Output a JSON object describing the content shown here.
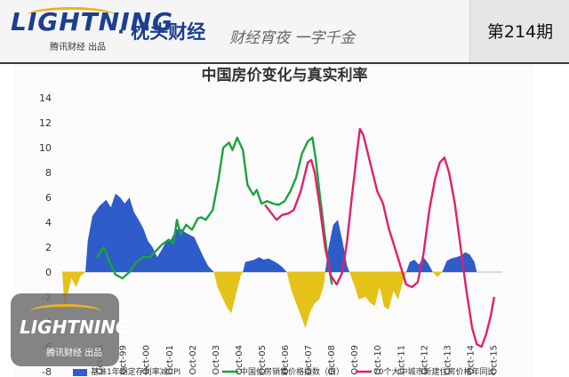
{
  "header": {
    "brand": "LIGHTNING",
    "brand_sub": "腾讯财经 出品",
    "column_name": "· 枕头财经",
    "slogan": "财经宵夜 一字千金",
    "issue": "第214期"
  },
  "watermark": {
    "brand": "LIGHTNING",
    "brand_sub": "腾讯财经 出品"
  },
  "colors": {
    "brand": "#1c3f8f",
    "series1": "#2e5cc8",
    "series1_negative": "#e5c21a",
    "series2": "#1aa33c",
    "series3": "#e0206a"
  },
  "chart_data": {
    "type": "line",
    "title": "中国房价变化与真实利率",
    "xlabel": "",
    "ylabel": "",
    "ylim": [
      -8,
      14
    ],
    "yticks": [
      14,
      12,
      10,
      8,
      6,
      4,
      2,
      0,
      -2,
      -4,
      -6,
      -8
    ],
    "x_range": [
      1997.0,
      2016.0
    ],
    "x_ticks": [
      {
        "label": "Oct-98",
        "x": 1998.75
      },
      {
        "label": "Oct-99",
        "x": 1999.75
      },
      {
        "label": "Oct-00",
        "x": 2000.75
      },
      {
        "label": "Oct-01",
        "x": 2001.75
      },
      {
        "label": "Oct-02",
        "x": 2002.75
      },
      {
        "label": "Oct-03",
        "x": 2003.75
      },
      {
        "label": "Oct-04",
        "x": 2004.75
      },
      {
        "label": "Oct-05",
        "x": 2005.75
      },
      {
        "label": "Oct-06",
        "x": 2006.75
      },
      {
        "label": "Oct-07",
        "x": 2007.75
      },
      {
        "label": "Oct-08",
        "x": 2008.75
      },
      {
        "label": "Oct-09",
        "x": 2009.75
      },
      {
        "label": "Oct-10",
        "x": 2010.75
      },
      {
        "label": "Oct-11",
        "x": 2011.75
      },
      {
        "label": "Oct-12",
        "x": 2012.75
      },
      {
        "label": "Oct-13",
        "x": 2013.75
      },
      {
        "label": "Oct-14",
        "x": 2014.75
      },
      {
        "label": "Oct-15",
        "x": 2015.75
      }
    ],
    "series": [
      {
        "name": "基准1年期定存利率减CPI",
        "style": "area",
        "points": [
          [
            1997.0,
            0.0
          ],
          [
            1997.1,
            -2.8
          ],
          [
            1997.4,
            -0.5
          ],
          [
            1997.6,
            -1.2
          ],
          [
            1997.8,
            -0.3
          ],
          [
            1998.0,
            0.0
          ],
          [
            1998.1,
            2.5
          ],
          [
            1998.3,
            4.5
          ],
          [
            1998.6,
            5.3
          ],
          [
            1998.9,
            5.8
          ],
          [
            1999.1,
            5.2
          ],
          [
            1999.3,
            6.3
          ],
          [
            1999.5,
            6.0
          ],
          [
            1999.7,
            5.5
          ],
          [
            1999.9,
            6.0
          ],
          [
            2000.1,
            4.8
          ],
          [
            2000.3,
            4.2
          ],
          [
            2000.5,
            3.5
          ],
          [
            2000.7,
            2.5
          ],
          [
            2000.9,
            2.0
          ],
          [
            2001.1,
            1.2
          ],
          [
            2001.3,
            1.8
          ],
          [
            2001.5,
            2.5
          ],
          [
            2001.7,
            2.6
          ],
          [
            2001.9,
            3.4
          ],
          [
            2002.1,
            3.5
          ],
          [
            2002.3,
            3.2
          ],
          [
            2002.5,
            3.0
          ],
          [
            2002.7,
            2.8
          ],
          [
            2002.9,
            2.0
          ],
          [
            2003.1,
            1.2
          ],
          [
            2003.3,
            0.5
          ],
          [
            2003.5,
            0.1
          ],
          [
            2003.55,
            0.0
          ],
          [
            2003.7,
            -1.2
          ],
          [
            2003.9,
            -2.0
          ],
          [
            2004.1,
            -2.8
          ],
          [
            2004.3,
            -3.3
          ],
          [
            2004.5,
            -1.8
          ],
          [
            2004.7,
            -0.3
          ],
          [
            2004.8,
            0.0
          ],
          [
            2004.9,
            0.8
          ],
          [
            2005.1,
            0.9
          ],
          [
            2005.3,
            1.0
          ],
          [
            2005.5,
            1.2
          ],
          [
            2005.7,
            1.0
          ],
          [
            2005.9,
            1.1
          ],
          [
            2006.1,
            0.9
          ],
          [
            2006.3,
            0.7
          ],
          [
            2006.5,
            0.4
          ],
          [
            2006.7,
            0.0
          ],
          [
            2006.8,
            -0.8
          ],
          [
            2006.9,
            -1.5
          ],
          [
            2007.1,
            -2.5
          ],
          [
            2007.3,
            -3.5
          ],
          [
            2007.5,
            -4.5
          ],
          [
            2007.7,
            -3.2
          ],
          [
            2007.9,
            -2.5
          ],
          [
            2008.1,
            -2.2
          ],
          [
            2008.3,
            -1.0
          ],
          [
            2008.35,
            0.0
          ],
          [
            2008.5,
            2.0
          ],
          [
            2008.7,
            3.8
          ],
          [
            2008.9,
            4.2
          ],
          [
            2009.1,
            2.5
          ],
          [
            2009.3,
            0.5
          ],
          [
            2009.4,
            0.0
          ],
          [
            2009.6,
            -1.0
          ],
          [
            2009.8,
            -2.2
          ],
          [
            2010.1,
            -2.0
          ],
          [
            2010.3,
            -2.5
          ],
          [
            2010.5,
            -2.7
          ],
          [
            2010.7,
            -1.2
          ],
          [
            2010.9,
            -2.8
          ],
          [
            2011.1,
            -3.0
          ],
          [
            2011.3,
            -1.5
          ],
          [
            2011.5,
            -2.2
          ],
          [
            2011.7,
            -0.8
          ],
          [
            2011.85,
            0.0
          ],
          [
            2012.0,
            0.8
          ],
          [
            2012.2,
            1.0
          ],
          [
            2012.4,
            0.6
          ],
          [
            2012.6,
            1.2
          ],
          [
            2012.8,
            0.7
          ],
          [
            2013.0,
            0.0
          ],
          [
            2013.2,
            -0.4
          ],
          [
            2013.4,
            0.0
          ],
          [
            2013.6,
            0.9
          ],
          [
            2013.8,
            1.1
          ],
          [
            2014.0,
            1.2
          ],
          [
            2014.2,
            1.3
          ],
          [
            2014.4,
            1.6
          ],
          [
            2014.6,
            1.4
          ],
          [
            2014.8,
            0.8
          ],
          [
            2014.9,
            0.0
          ]
        ]
      },
      {
        "name": "中国住房销售价格指数（旧）",
        "style": "line",
        "points": [
          [
            1998.5,
            1.2
          ],
          [
            1998.8,
            2.0
          ],
          [
            1999.0,
            1.0
          ],
          [
            1999.3,
            -0.2
          ],
          [
            1999.6,
            -0.5
          ],
          [
            1999.9,
            0.0
          ],
          [
            2000.2,
            0.8
          ],
          [
            2000.5,
            1.2
          ],
          [
            2000.8,
            1.2
          ],
          [
            2001.0,
            1.6
          ],
          [
            2001.3,
            2.2
          ],
          [
            2001.6,
            2.6
          ],
          [
            2001.8,
            2.3
          ],
          [
            2001.95,
            4.2
          ],
          [
            2002.1,
            3.0
          ],
          [
            2002.35,
            3.8
          ],
          [
            2002.6,
            3.4
          ],
          [
            2002.85,
            4.3
          ],
          [
            2003.0,
            4.4
          ],
          [
            2003.2,
            4.2
          ],
          [
            2003.5,
            5.0
          ],
          [
            2003.75,
            7.5
          ],
          [
            2003.95,
            10.0
          ],
          [
            2004.2,
            10.4
          ],
          [
            2004.35,
            9.8
          ],
          [
            2004.55,
            10.8
          ],
          [
            2004.8,
            9.8
          ],
          [
            2005.0,
            7.0
          ],
          [
            2005.25,
            6.2
          ],
          [
            2005.4,
            6.6
          ],
          [
            2005.6,
            5.5
          ],
          [
            2005.85,
            5.7
          ],
          [
            2006.1,
            5.5
          ],
          [
            2006.35,
            5.4
          ],
          [
            2006.6,
            5.7
          ],
          [
            2006.85,
            6.5
          ],
          [
            2007.1,
            7.6
          ],
          [
            2007.35,
            9.5
          ],
          [
            2007.6,
            10.5
          ],
          [
            2007.8,
            10.8
          ],
          [
            2007.95,
            9.0
          ],
          [
            2008.1,
            6.5
          ],
          [
            2008.3,
            3.5
          ],
          [
            2008.5,
            0.5
          ],
          [
            2008.65,
            -1.0
          ]
        ]
      },
      {
        "name": "70个大中城市新建住房价格年同比",
        "style": "line",
        "points": [
          [
            2005.75,
            5.4
          ],
          [
            2006.0,
            4.8
          ],
          [
            2006.25,
            4.2
          ],
          [
            2006.5,
            4.6
          ],
          [
            2006.75,
            4.7
          ],
          [
            2007.0,
            5.0
          ],
          [
            2007.3,
            6.5
          ],
          [
            2007.6,
            8.8
          ],
          [
            2007.75,
            9.0
          ],
          [
            2007.9,
            8.0
          ],
          [
            2008.1,
            5.5
          ],
          [
            2008.35,
            2.0
          ],
          [
            2008.6,
            -0.3
          ],
          [
            2008.85,
            -1.0
          ],
          [
            2009.1,
            0.0
          ],
          [
            2009.3,
            2.5
          ],
          [
            2009.5,
            6.0
          ],
          [
            2009.75,
            10.0
          ],
          [
            2009.85,
            11.5
          ],
          [
            2010.0,
            11.0
          ],
          [
            2010.2,
            9.5
          ],
          [
            2010.4,
            8.0
          ],
          [
            2010.6,
            6.5
          ],
          [
            2010.85,
            5.5
          ],
          [
            2011.1,
            3.5
          ],
          [
            2011.35,
            2.0
          ],
          [
            2011.6,
            0.5
          ],
          [
            2011.85,
            -1.0
          ],
          [
            2012.1,
            -1.2
          ],
          [
            2012.35,
            -0.8
          ],
          [
            2012.6,
            1.5
          ],
          [
            2012.85,
            5.0
          ],
          [
            2013.1,
            7.5
          ],
          [
            2013.3,
            8.8
          ],
          [
            2013.5,
            9.2
          ],
          [
            2013.7,
            8.0
          ],
          [
            2013.95,
            5.5
          ],
          [
            2014.2,
            2.0
          ],
          [
            2014.45,
            -1.5
          ],
          [
            2014.7,
            -4.5
          ],
          [
            2014.9,
            -5.8
          ],
          [
            2015.1,
            -6.0
          ],
          [
            2015.3,
            -5.0
          ],
          [
            2015.5,
            -3.5
          ],
          [
            2015.65,
            -2.0
          ]
        ]
      }
    ]
  }
}
